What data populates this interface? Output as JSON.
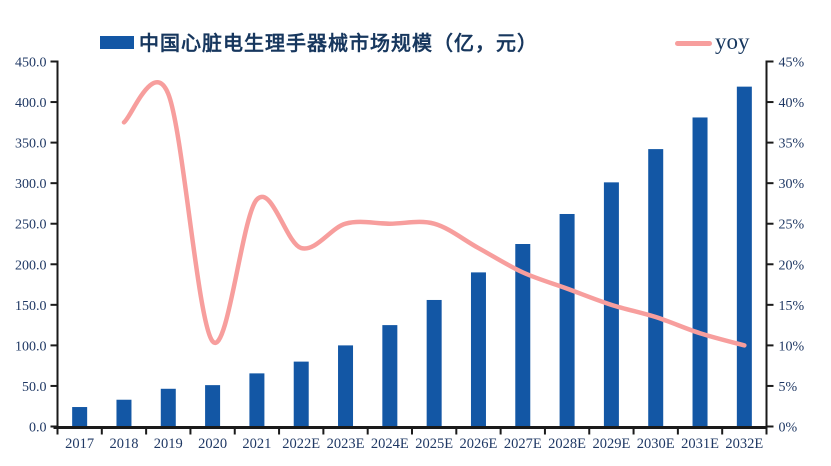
{
  "colors": {
    "bar": "#1357A5",
    "line": "#F79E9D",
    "axis": "#1A1A1A",
    "tick_text": "#1F3864",
    "legend_text": "#17375E",
    "background": "#FFFFFF"
  },
  "chart_data": {
    "type": "combo-bar-line",
    "title": "中国心脏电生理手器械市场规模（亿，元）",
    "legend_position": "top",
    "grid": "off",
    "categories": [
      "2017",
      "2018",
      "2019",
      "2020",
      "2021",
      "2022E",
      "2023E",
      "2024E",
      "2025E",
      "2026E",
      "2027E",
      "2028E",
      "2029E",
      "2030E",
      "2031E",
      "2032E"
    ],
    "series": [
      {
        "name": "中国心脏电生理手器械市场规模（亿，元）",
        "type": "bar",
        "yaxis": "left",
        "values": [
          24,
          33,
          46.5,
          51,
          65.5,
          80,
          100,
          125,
          156,
          190,
          225,
          262,
          301,
          342,
          381,
          419
        ]
      },
      {
        "name": "yoy",
        "type": "line",
        "yaxis": "right",
        "values": [
          null,
          37.5,
          41,
          10.5,
          28,
          22,
          25,
          25,
          25,
          22,
          19,
          17,
          15,
          13.5,
          11.5,
          10
        ]
      }
    ],
    "left_axis": {
      "min": 0,
      "max": 450,
      "step": 50,
      "tick_labels": [
        "450.0",
        "400.0",
        "350.0",
        "300.0",
        "250.0",
        "200.0",
        "150.0",
        "100.0",
        "50.0",
        "0.0"
      ]
    },
    "right_axis": {
      "min": 0,
      "max": 45,
      "step": 5,
      "tick_labels": [
        "45%",
        "40%",
        "35%",
        "30%",
        "25%",
        "20%",
        "15%",
        "10%",
        "5%",
        "0%"
      ]
    }
  }
}
